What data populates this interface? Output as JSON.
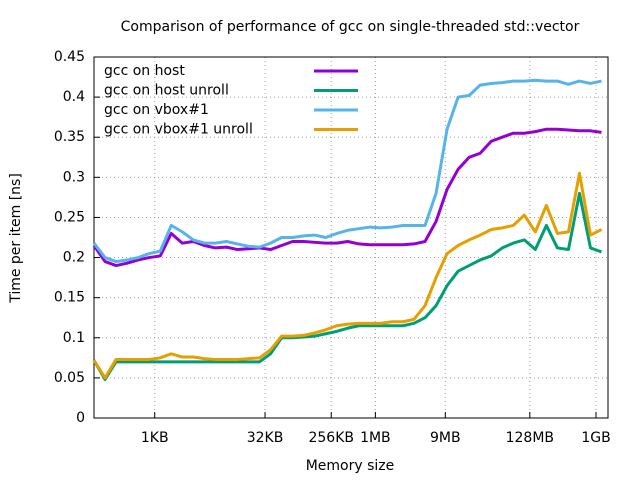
{
  "chart_data": {
    "type": "line",
    "title": "Comparison of performance of gcc on single-threaded std::vector",
    "x_label": "Memory size",
    "y_label": "Time per item [ns]",
    "log_x": true,
    "grid": true,
    "legend": "top-left",
    "x": [
      152,
      215,
      304,
      431,
      609,
      861,
      1218,
      1722,
      2435,
      3444,
      4871,
      6889,
      9742,
      13777,
      19484,
      27554,
      38968,
      55109,
      77936,
      110218,
      155872,
      220436,
      311744,
      440872,
      623487,
      881744,
      1246974,
      1763488,
      2493948,
      3526975,
      4987896,
      7053950,
      9975792,
      14107900,
      19951584,
      28215800,
      39903168,
      56431600,
      79806336,
      112863200,
      159612672,
      225726400,
      319225344,
      451452800,
      638450688,
      902905600,
      1276901376
    ],
    "xlim": [
      152,
      1565000000
    ],
    "xticks": [
      {
        "value": 1024,
        "label": "1KB"
      },
      {
        "value": 32768,
        "label": "32KB"
      },
      {
        "value": 262144,
        "label": "256KB"
      },
      {
        "value": 1048576,
        "label": "1MB"
      },
      {
        "value": 9437184,
        "label": "9MB"
      },
      {
        "value": 134217728,
        "label": "128MB"
      },
      {
        "value": 1073741824,
        "label": "1GB"
      }
    ],
    "ylim": [
      0,
      0.45
    ],
    "yticks": [
      0,
      0.05,
      0.1,
      0.15,
      0.2,
      0.25,
      0.3,
      0.35,
      0.4,
      0.45
    ],
    "series": [
      {
        "name": "gcc on host",
        "color": "#9400d3",
        "values": [
          0.215,
          0.195,
          0.19,
          0.193,
          0.197,
          0.2,
          0.202,
          0.23,
          0.218,
          0.22,
          0.215,
          0.212,
          0.213,
          0.21,
          0.211,
          0.212,
          0.21,
          0.215,
          0.22,
          0.22,
          0.219,
          0.218,
          0.218,
          0.22,
          0.217,
          0.216,
          0.216,
          0.216,
          0.216,
          0.217,
          0.22,
          0.245,
          0.285,
          0.31,
          0.325,
          0.33,
          0.345,
          0.35,
          0.355,
          0.355,
          0.357,
          0.36,
          0.36,
          0.359,
          0.358,
          0.358,
          0.356
        ]
      },
      {
        "name": "gcc on host unroll",
        "color": "#009e73",
        "values": [
          0.072,
          0.048,
          0.07,
          0.07,
          0.07,
          0.07,
          0.07,
          0.07,
          0.07,
          0.07,
          0.07,
          0.07,
          0.07,
          0.07,
          0.07,
          0.07,
          0.08,
          0.1,
          0.1,
          0.101,
          0.102,
          0.105,
          0.108,
          0.112,
          0.115,
          0.115,
          0.115,
          0.115,
          0.115,
          0.118,
          0.125,
          0.14,
          0.165,
          0.183,
          0.19,
          0.197,
          0.202,
          0.212,
          0.218,
          0.222,
          0.21,
          0.24,
          0.212,
          0.21,
          0.28,
          0.212,
          0.207
        ]
      },
      {
        "name": "gcc on vbox#1",
        "color": "#56b4e9",
        "values": [
          0.218,
          0.2,
          0.195,
          0.197,
          0.2,
          0.205,
          0.208,
          0.24,
          0.232,
          0.222,
          0.218,
          0.218,
          0.22,
          0.217,
          0.214,
          0.213,
          0.218,
          0.225,
          0.225,
          0.227,
          0.228,
          0.225,
          0.23,
          0.234,
          0.236,
          0.238,
          0.237,
          0.238,
          0.24,
          0.24,
          0.24,
          0.28,
          0.36,
          0.4,
          0.402,
          0.415,
          0.417,
          0.418,
          0.42,
          0.42,
          0.421,
          0.42,
          0.42,
          0.416,
          0.42,
          0.417,
          0.42
        ]
      },
      {
        "name": "gcc on vbox#1 unroll",
        "color": "#e69f00",
        "values": [
          0.072,
          0.05,
          0.073,
          0.073,
          0.073,
          0.073,
          0.075,
          0.08,
          0.076,
          0.076,
          0.074,
          0.073,
          0.073,
          0.073,
          0.074,
          0.075,
          0.085,
          0.102,
          0.102,
          0.103,
          0.106,
          0.11,
          0.115,
          0.117,
          0.118,
          0.118,
          0.118,
          0.12,
          0.12,
          0.123,
          0.14,
          0.175,
          0.205,
          0.215,
          0.222,
          0.228,
          0.235,
          0.237,
          0.24,
          0.253,
          0.232,
          0.265,
          0.23,
          0.232,
          0.305,
          0.228,
          0.235
        ]
      }
    ]
  }
}
